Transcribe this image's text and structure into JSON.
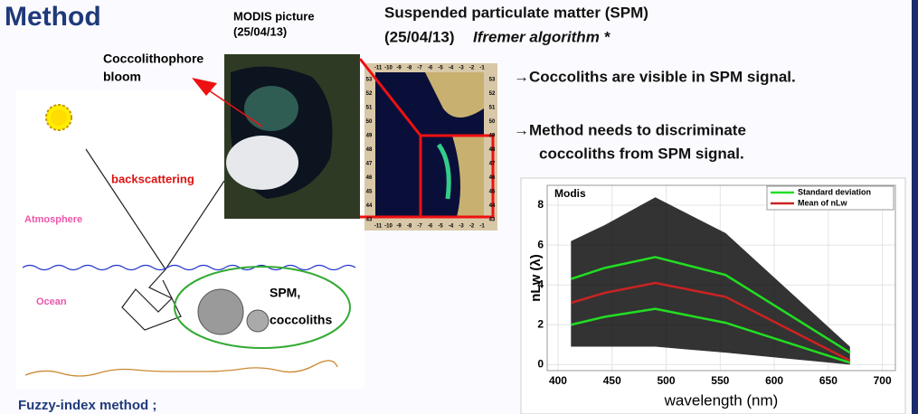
{
  "title": "Method",
  "modis_label": [
    "MODIS picture",
    "(25/04/13)"
  ],
  "spm_title": {
    "line1": "Suspended particulate matter (SPM)",
    "line2": "(25/04/13)",
    "line2_italic": "Ifremer algorithm *"
  },
  "bloom_label": [
    "Coccolithophore",
    "bloom"
  ],
  "map": {
    "lon_ticks": [
      -11,
      -10,
      -9,
      -8,
      -7,
      -6,
      -5,
      -4,
      -3,
      -2,
      -1
    ],
    "lat_ticks": [
      53,
      52,
      51,
      50,
      49,
      48,
      47,
      46,
      45,
      44,
      43
    ]
  },
  "diagram": {
    "backscattering": "backscattering",
    "atmosphere": "Atmosphere",
    "ocean": "Ocean",
    "particles": [
      "SPM,",
      "coccoliths"
    ]
  },
  "bullets": [
    "→Coccoliths are visible in SPM signal.",
    "→Method needs to discriminate",
    "coccoliths from SPM signal."
  ],
  "footer": "Fuzzy-index method ;",
  "chart_data": {
    "type": "line",
    "title": "Modis",
    "xlabel": "wavelength (nm)",
    "ylabel": "nLw (λ)",
    "x": [
      412,
      443,
      490,
      555,
      670
    ],
    "spectra_range": {
      "color": "#000000",
      "low": [
        0.9,
        0.9,
        0.9,
        0.6,
        0.0
      ],
      "high": [
        6.2,
        7.0,
        8.4,
        6.6,
        0.9
      ]
    },
    "series": [
      {
        "name": "Standard deviation",
        "color": "#22dd22",
        "upper": [
          4.3,
          4.85,
          5.4,
          4.5,
          0.6
        ],
        "lower": [
          2.0,
          2.4,
          2.8,
          2.1,
          0.1
        ]
      },
      {
        "name": "Mean of nLw",
        "color": "#cc2222",
        "values": [
          3.1,
          3.6,
          4.1,
          3.4,
          0.2
        ]
      }
    ],
    "xlim": [
      390,
      712
    ],
    "ylim": [
      -0.3,
      9
    ],
    "xticks": [
      400,
      450,
      500,
      550,
      600,
      650,
      700
    ],
    "yticks": [
      0,
      2,
      4,
      6,
      8
    ],
    "grid": true
  }
}
